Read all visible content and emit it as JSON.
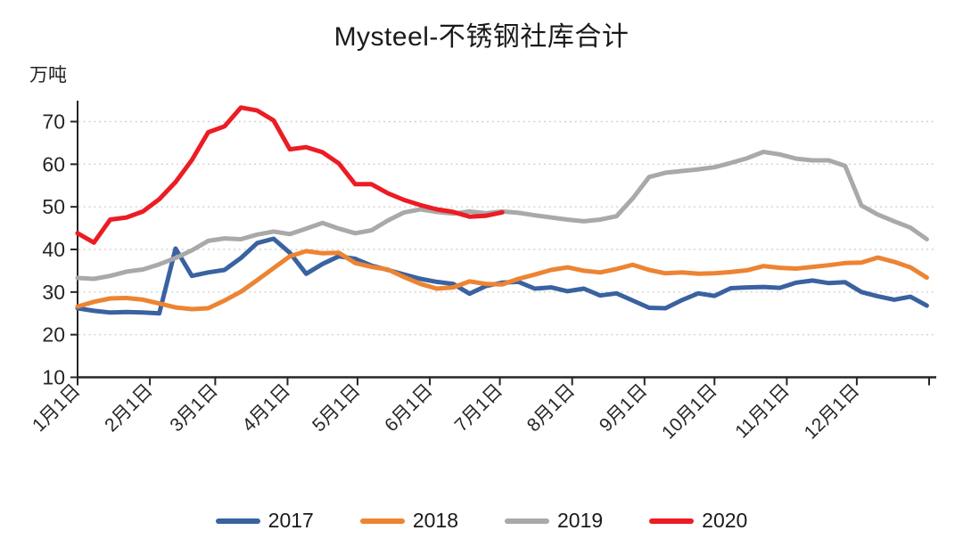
{
  "title": "Mysteel-不锈钢社库合计",
  "unit_label": "万吨",
  "chart_data": {
    "type": "line",
    "title": "Mysteel-不锈钢社库合计",
    "ylabel": "万吨",
    "ylim": [
      10,
      73.5
    ],
    "yticks": [
      10,
      20,
      30,
      40,
      50,
      60,
      70
    ],
    "grid": "horizontal-dotted",
    "legend_position": "bottom",
    "x_tick_labels": [
      "1月1日",
      "2月1日",
      "3月1日",
      "4月1日",
      "5月1日",
      "6月1日",
      "7月1日",
      "8月1日",
      "9月1日",
      "10月1日",
      "11月1日",
      "12月1日"
    ],
    "x_tick_days": [
      1,
      32,
      60,
      91,
      121,
      152,
      182,
      213,
      244,
      274,
      305,
      335
    ],
    "x_axis_end_day": 366,
    "x_unit": "day of year, weekly data points",
    "start_day": 1,
    "week_step_days": 7,
    "series": [
      {
        "name": "2017",
        "color": "#3A62A0",
        "values": [
          26.2,
          25.6,
          25.2,
          25.3,
          25.2,
          25.0,
          40.2,
          33.8,
          34.6,
          35.2,
          38.0,
          41.5,
          42.5,
          39.2,
          34.3,
          36.6,
          38.4,
          37.8,
          36.2,
          35.2,
          34.1,
          33.1,
          32.4,
          31.9,
          29.6,
          31.4,
          32.2,
          32.4,
          30.8,
          31.1,
          30.2,
          30.8,
          29.2,
          29.7,
          28.0,
          26.3,
          26.2,
          28.1,
          29.7,
          29.1,
          30.9,
          31.1,
          31.2,
          31.0,
          32.2,
          32.7,
          32.1,
          32.3,
          30.0,
          29.0,
          28.2,
          28.9,
          26.8
        ]
      },
      {
        "name": "2018",
        "color": "#EC8433",
        "values": [
          26.6,
          27.7,
          28.5,
          28.6,
          28.2,
          27.3,
          26.4,
          26.0,
          26.2,
          28.0,
          30.1,
          32.8,
          35.6,
          38.4,
          39.6,
          39.1,
          39.2,
          36.8,
          35.9,
          35.3,
          33.5,
          31.9,
          30.8,
          31.1,
          32.5,
          31.9,
          31.8,
          33.1,
          34.1,
          35.2,
          35.8,
          35.0,
          34.6,
          35.4,
          36.4,
          35.2,
          34.4,
          34.6,
          34.3,
          34.4,
          34.7,
          35.1,
          36.1,
          35.7,
          35.5,
          35.9,
          36.3,
          36.8,
          36.9,
          38.1,
          37.1,
          35.8,
          33.4
        ]
      },
      {
        "name": "2019",
        "color": "#A9A9A9",
        "values": [
          33.3,
          33.1,
          33.8,
          34.8,
          35.3,
          36.5,
          38.0,
          39.8,
          42.0,
          42.6,
          42.4,
          43.5,
          44.2,
          43.6,
          44.9,
          46.2,
          44.9,
          43.8,
          44.5,
          46.8,
          48.7,
          49.4,
          48.8,
          48.4,
          48.9,
          48.5,
          48.9,
          48.6,
          48.0,
          47.5,
          47.0,
          46.6,
          47.0,
          47.8,
          52.0,
          57.0,
          58.0,
          58.4,
          58.8,
          59.3,
          60.3,
          61.4,
          62.9,
          62.3,
          61.3,
          60.9,
          60.9,
          59.6,
          50.3,
          48.2,
          46.6,
          45.1,
          42.4
        ]
      },
      {
        "name": "2020",
        "color": "#EC1C24",
        "values": [
          43.8,
          41.6,
          47.0,
          47.5,
          48.9,
          51.8,
          55.8,
          61.0,
          67.5,
          68.9,
          73.3,
          72.6,
          70.3,
          63.5,
          64.0,
          62.8,
          60.2,
          55.3,
          55.3,
          53.2,
          51.6,
          50.4,
          49.4,
          48.8,
          47.7,
          47.9,
          48.7
        ]
      }
    ]
  }
}
